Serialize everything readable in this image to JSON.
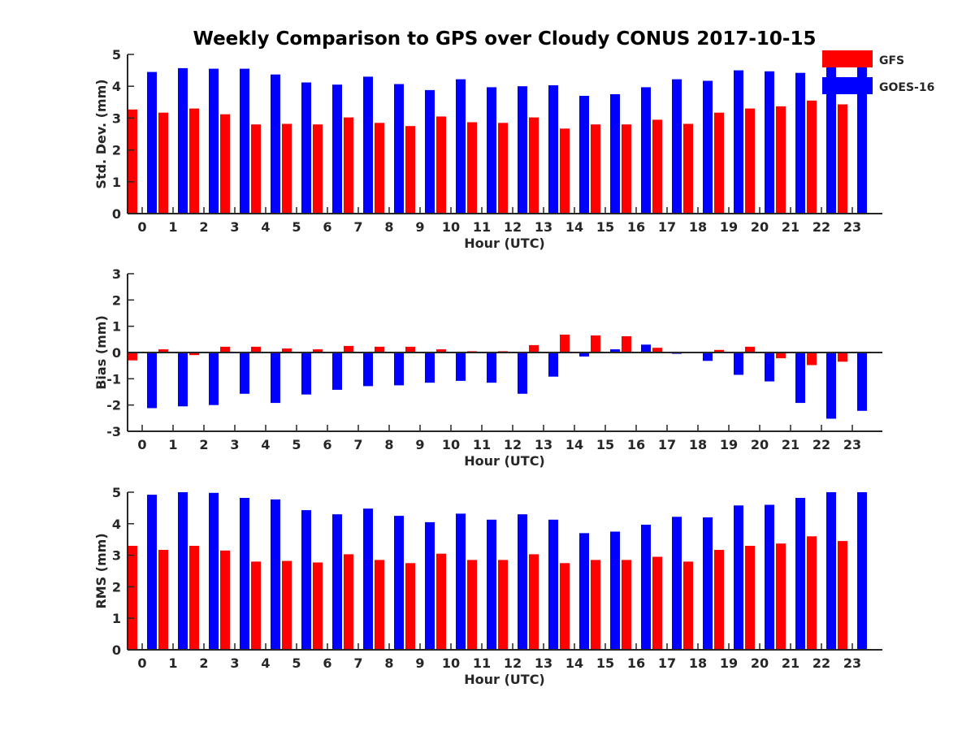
{
  "figure": {
    "title": "Weekly Comparison to GPS over Cloudy CONUS 2017-10-15"
  },
  "colors": {
    "gfs": "#ff0000",
    "goes": "#0000ff",
    "axis": "#262626",
    "text": "#262626"
  },
  "legend": {
    "placement": "top-right, outside first panel",
    "items": [
      "GFS",
      "GOES-16"
    ]
  },
  "chart_data": [
    {
      "type": "bar",
      "title": "",
      "xlabel": "Hour (UTC)",
      "ylabel": "Std. Dev. (mm)",
      "ylim": [
        0,
        5
      ],
      "yticks": [
        "0",
        "1",
        "2",
        "3",
        "4",
        "5"
      ],
      "categories": [
        "0",
        "1",
        "2",
        "3",
        "4",
        "5",
        "6",
        "7",
        "8",
        "9",
        "10",
        "11",
        "12",
        "13",
        "14",
        "15",
        "16",
        "17",
        "18",
        "19",
        "20",
        "21",
        "22",
        "23"
      ],
      "grid": false,
      "series": [
        {
          "name": "GFS",
          "values": [
            3.27,
            3.17,
            3.3,
            3.12,
            2.8,
            2.82,
            2.8,
            3.02,
            2.85,
            2.75,
            3.05,
            2.87,
            2.85,
            3.02,
            2.67,
            2.8,
            2.8,
            2.95,
            2.82,
            3.17,
            3.3,
            3.37,
            3.55,
            3.43
          ]
        },
        {
          "name": "GOES-16",
          "values": [
            4.45,
            4.57,
            4.55,
            4.55,
            4.37,
            4.12,
            4.05,
            4.3,
            4.07,
            3.88,
            4.22,
            3.97,
            4.0,
            4.03,
            3.7,
            3.75,
            3.97,
            4.22,
            4.17,
            4.5,
            4.47,
            4.42,
            4.75,
            4.65
          ]
        }
      ]
    },
    {
      "type": "bar",
      "title": "",
      "xlabel": "Hour (UTC)",
      "ylabel": "Bias (mm)",
      "ylim": [
        -3,
        3
      ],
      "yticks": [
        "-3",
        "-2",
        "-1",
        "0",
        "1",
        "2",
        "3"
      ],
      "categories": [
        "0",
        "1",
        "2",
        "3",
        "4",
        "5",
        "6",
        "7",
        "8",
        "9",
        "10",
        "11",
        "12",
        "13",
        "14",
        "15",
        "16",
        "17",
        "18",
        "19",
        "20",
        "21",
        "22",
        "23"
      ],
      "grid": false,
      "series": [
        {
          "name": "GFS",
          "values": [
            -0.3,
            0.12,
            -0.1,
            0.22,
            0.22,
            0.15,
            0.12,
            0.25,
            0.22,
            0.22,
            0.12,
            0.05,
            0.05,
            0.28,
            0.68,
            0.65,
            0.62,
            0.18,
            0.02,
            0.1,
            0.22,
            -0.22,
            -0.48,
            -0.35
          ]
        },
        {
          "name": "GOES-16",
          "values": [
            -2.12,
            -2.05,
            -2.0,
            -1.57,
            -1.92,
            -1.6,
            -1.42,
            -1.28,
            -1.25,
            -1.15,
            -1.08,
            -1.15,
            -1.57,
            -0.92,
            -0.15,
            0.12,
            0.3,
            -0.05,
            -0.32,
            -0.85,
            -1.1,
            -1.92,
            -2.52,
            -2.22
          ]
        }
      ]
    },
    {
      "type": "bar",
      "title": "",
      "xlabel": "Hour (UTC)",
      "ylabel": "RMS (mm)",
      "ylim": [
        0,
        5
      ],
      "yticks": [
        "0",
        "1",
        "2",
        "3",
        "4",
        "5"
      ],
      "categories": [
        "0",
        "1",
        "2",
        "3",
        "4",
        "5",
        "6",
        "7",
        "8",
        "9",
        "10",
        "11",
        "12",
        "13",
        "14",
        "15",
        "16",
        "17",
        "18",
        "19",
        "20",
        "21",
        "22",
        "23"
      ],
      "grid": false,
      "series": [
        {
          "name": "GFS",
          "values": [
            3.3,
            3.17,
            3.3,
            3.15,
            2.8,
            2.82,
            2.77,
            3.03,
            2.85,
            2.75,
            3.05,
            2.85,
            2.85,
            3.03,
            2.75,
            2.85,
            2.85,
            2.95,
            2.8,
            3.17,
            3.3,
            3.37,
            3.6,
            3.45
          ]
        },
        {
          "name": "GOES-16",
          "values": [
            4.92,
            5.0,
            4.98,
            4.82,
            4.77,
            4.43,
            4.3,
            4.48,
            4.25,
            4.05,
            4.32,
            4.13,
            4.3,
            4.13,
            3.7,
            3.75,
            3.97,
            4.22,
            4.2,
            4.58,
            4.6,
            4.82,
            5.0,
            5.0
          ]
        }
      ]
    }
  ]
}
